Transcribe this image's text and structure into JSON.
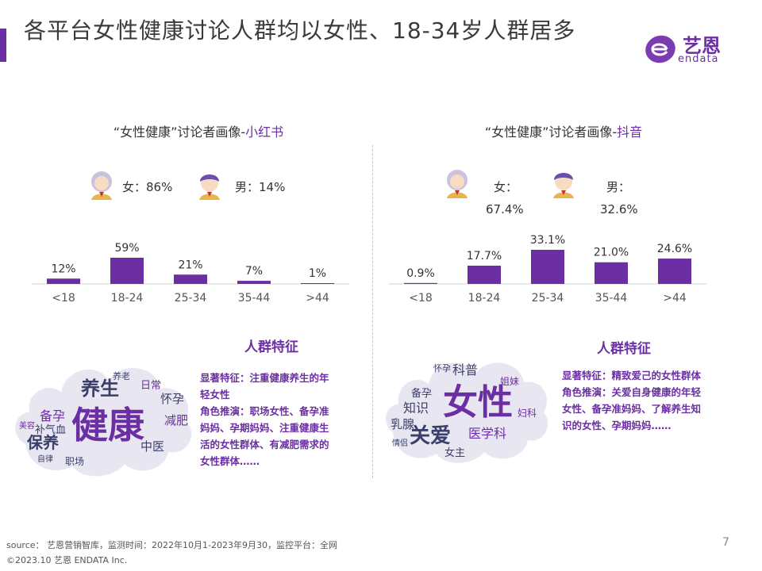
{
  "title": "各平台女性健康讨论人群均以女性、18-34岁人群居多",
  "logo": {
    "cn": "艺恩",
    "en": "endata"
  },
  "panels": [
    {
      "title_prefix": "“女性健康”讨论者画像-",
      "title_platform": "小红书",
      "female_label": "女：86%",
      "male_label": "男：14%",
      "section_title": "人群特征",
      "desc_lines": [
        "显著特征：注重健康养生的年",
        "轻女性",
        "角色推演：职场女性、备孕准",
        "妈妈、孕期妈妈、注重健康生",
        "活的女性群体、有减肥需求的",
        "女性群体……"
      ],
      "cloud_words": [
        "健康",
        "养生",
        "保养",
        "备孕",
        "日常",
        "怀孕",
        "减肥",
        "中医",
        "补气血",
        "职场",
        "美容",
        "自律",
        "养老"
      ]
    },
    {
      "title_prefix": "“女性健康”讨论者画像-",
      "title_platform": "抖音",
      "female_label": "女：",
      "female_value": "67.4%",
      "male_label": "男：",
      "male_value": "32.6%",
      "section_title": "人群特征",
      "desc_lines": [
        "显著特征：精致爱己的女性群体",
        "角色推演：关爱自身健康的年轻",
        "女性、备孕准妈妈、了解养生知",
        "识的女性、孕期妈妈……"
      ],
      "cloud_words": [
        "女性",
        "关爱",
        "科普",
        "知识",
        "乳腺",
        "医学科",
        "备孕",
        "女主",
        "姐妹",
        "妇科",
        "怀孕",
        "情侣"
      ]
    }
  ],
  "chart_data": [
    {
      "type": "bar",
      "categories": [
        "<18",
        "18-24",
        "25-34",
        "35-44",
        ">44"
      ],
      "values": [
        12,
        59,
        21,
        7,
        1
      ],
      "value_labels": [
        "12%",
        "59%",
        "21%",
        "7%",
        "1%"
      ],
      "ylim": [
        0,
        59
      ],
      "color": "#6b2fa3"
    },
    {
      "type": "bar",
      "categories": [
        "<18",
        "18-24",
        "25-34",
        "35-44",
        ">44"
      ],
      "values": [
        0.9,
        17.7,
        33.1,
        21.0,
        24.6
      ],
      "value_labels": [
        "0.9%",
        "17.7%",
        "33.1%",
        "21.0%",
        "24.6%"
      ],
      "ylim": [
        0,
        33.1
      ],
      "color": "#6b2fa3"
    }
  ],
  "footer": {
    "source": "source： 艺恩营销智库，监测时间：2022年10月1-2023年9月30，监控平台：全网",
    "copyright": "©2023.10 艺恩 ENDATA Inc.",
    "page": "7"
  },
  "colors": {
    "accent": "#6b2fa3",
    "cloud": "#3a3f6a"
  }
}
